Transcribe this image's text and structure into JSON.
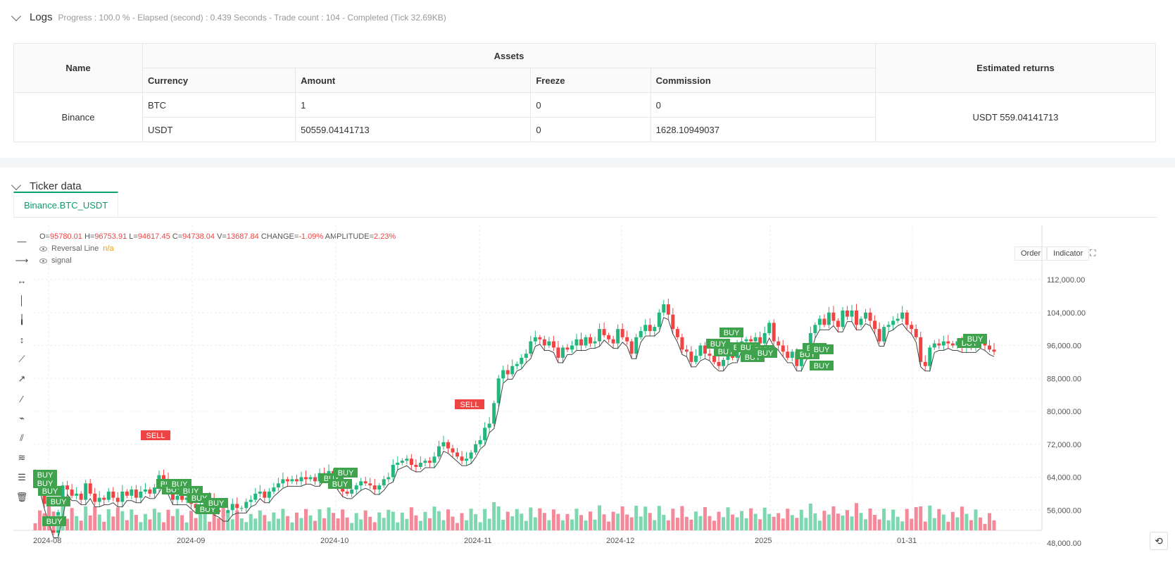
{
  "logs": {
    "title": "Logs",
    "status": "Progress : 100.0 % - Elapsed (second) : 0.439 Seconds - Trade count : 104 - Completed (Tick 32.69KB)",
    "table": {
      "h_name": "Name",
      "h_assets": "Assets",
      "h_returns": "Estimated returns",
      "h_currency": "Currency",
      "h_amount": "Amount",
      "h_freeze": "Freeze",
      "h_commission": "Commission",
      "exchange": "Binance",
      "rows": [
        {
          "currency": "BTC",
          "amount": "1",
          "freeze": "0",
          "commission": "0"
        },
        {
          "currency": "USDT",
          "amount": "50559.04141713",
          "freeze": "0",
          "commission": "1628.10949037"
        }
      ],
      "returns": "USDT 559.04141713"
    }
  },
  "ticker": {
    "title": "Ticker data",
    "tab_label": "Binance.BTC_USDT",
    "ohlc": {
      "o_label": "O=",
      "o": "95780.01",
      "h_label": "H=",
      "h": "96753.91",
      "l_label": "L=",
      "l": "94617.45",
      "c_label": "C=",
      "c": "94738.04",
      "v_label": "V=",
      "v": "13687.84",
      "change_label": "CHANGE=",
      "change": "-1.09%",
      "amp_label": "AMPLITUDE=",
      "amp": "2.23%"
    },
    "legend": {
      "reversal_line": "Reversal Line",
      "reversal_value": "n/a",
      "signal": "signal"
    },
    "buttons": {
      "order": "Order",
      "indicator": "Indicator"
    }
  },
  "chart_data": {
    "type": "candlestick",
    "x_ticks": [
      "2024-08",
      "2024-09",
      "2024-10",
      "2024-11",
      "2024-12",
      "2025",
      "01-31"
    ],
    "y_ticks": [
      "112,000.00",
      "104,000.00",
      "96,000.00",
      "88,000.00",
      "80,000.00",
      "72,000.00",
      "64,000.00",
      "56,000.00",
      "48,000.00"
    ],
    "ylim": [
      44000,
      118000
    ],
    "close": [
      64500,
      62000,
      57500,
      54000,
      50500,
      55500,
      62000,
      61000,
      59500,
      60000,
      58500,
      62500,
      60000,
      58000,
      59000,
      58500,
      60500,
      59000,
      58000,
      60500,
      59500,
      61000,
      59000,
      60500,
      61000,
      60000,
      61500,
      64500,
      63500,
      61000,
      58500,
      59500,
      58500,
      59000,
      57500,
      56500,
      57000,
      59000,
      58500,
      56000,
      55500,
      54500,
      56000,
      57500,
      56500,
      56500,
      58000,
      58500,
      60000,
      60500,
      59000,
      60500,
      61500,
      62500,
      63500,
      63000,
      63500,
      63000,
      64000,
      63500,
      64000,
      63000,
      65000,
      64500,
      65500,
      64000,
      62000,
      60500,
      60000,
      61000,
      62000,
      63000,
      62500,
      62000,
      61000,
      62000,
      63500,
      64000,
      67000,
      67500,
      68000,
      68500,
      67000,
      66500,
      67500,
      68000,
      67500,
      69000,
      71500,
      72500,
      71000,
      70000,
      69000,
      68000,
      68500,
      70000,
      72000,
      73000,
      76000,
      77000,
      82000,
      88000,
      90000,
      89000,
      91000,
      91500,
      93000,
      94000,
      97000,
      98000,
      97500,
      96000,
      97000,
      95500,
      93000,
      95500,
      95000,
      96000,
      97500,
      96000,
      98000,
      96500,
      97000,
      100000,
      98500,
      97500,
      96500,
      100000,
      98000,
      97000,
      94000,
      98000,
      99500,
      101000,
      99500,
      100500,
      104000,
      106000,
      103500,
      100000,
      98000,
      95000,
      94500,
      92000,
      93500,
      96000,
      94000,
      93500,
      92000,
      91000,
      92500,
      94000,
      93000,
      96000,
      97000,
      97500,
      97000,
      98000,
      96500,
      99000,
      101500,
      97000,
      96000,
      94500,
      93000,
      94500,
      91000,
      93500,
      95000,
      99000,
      101000,
      102500,
      101000,
      104000,
      102000,
      100500,
      104500,
      103000,
      104500,
      101000,
      102500,
      104000,
      102000,
      100000,
      97000,
      100500,
      101000,
      102000,
      102500,
      104000,
      101000,
      100000,
      98000,
      92000,
      91000,
      95500,
      96500,
      96000,
      97000,
      96500,
      96000,
      97000,
      95500,
      96500,
      95500,
      97000,
      96500,
      96000,
      95000,
      94500
    ]
  }
}
